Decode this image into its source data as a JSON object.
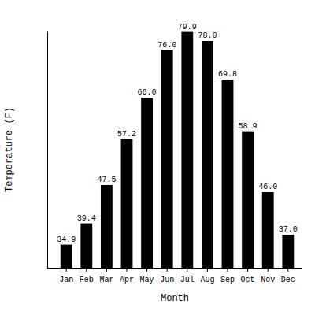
{
  "chart_data": {
    "type": "bar",
    "xlabel": "Month",
    "ylabel": "Temperature (F)",
    "categories": [
      "Jan",
      "Feb",
      "Mar",
      "Apr",
      "May",
      "Jun",
      "Jul",
      "Aug",
      "Sep",
      "Oct",
      "Nov",
      "Dec"
    ],
    "values": [
      34.9,
      39.4,
      47.5,
      57.2,
      66.0,
      76.0,
      79.9,
      78.0,
      69.8,
      58.9,
      46.0,
      37.0
    ],
    "value_labels": [
      "34.9",
      "39.4",
      "47.5",
      "57.2",
      "66.0",
      "76.0",
      "79.9",
      "78.0",
      "69.8",
      "58.9",
      "46.0",
      "37.0"
    ],
    "color": "#000000",
    "ylim": [
      30,
      80
    ],
    "data_labels": true,
    "tick_labels": "x",
    "grid": false
  }
}
